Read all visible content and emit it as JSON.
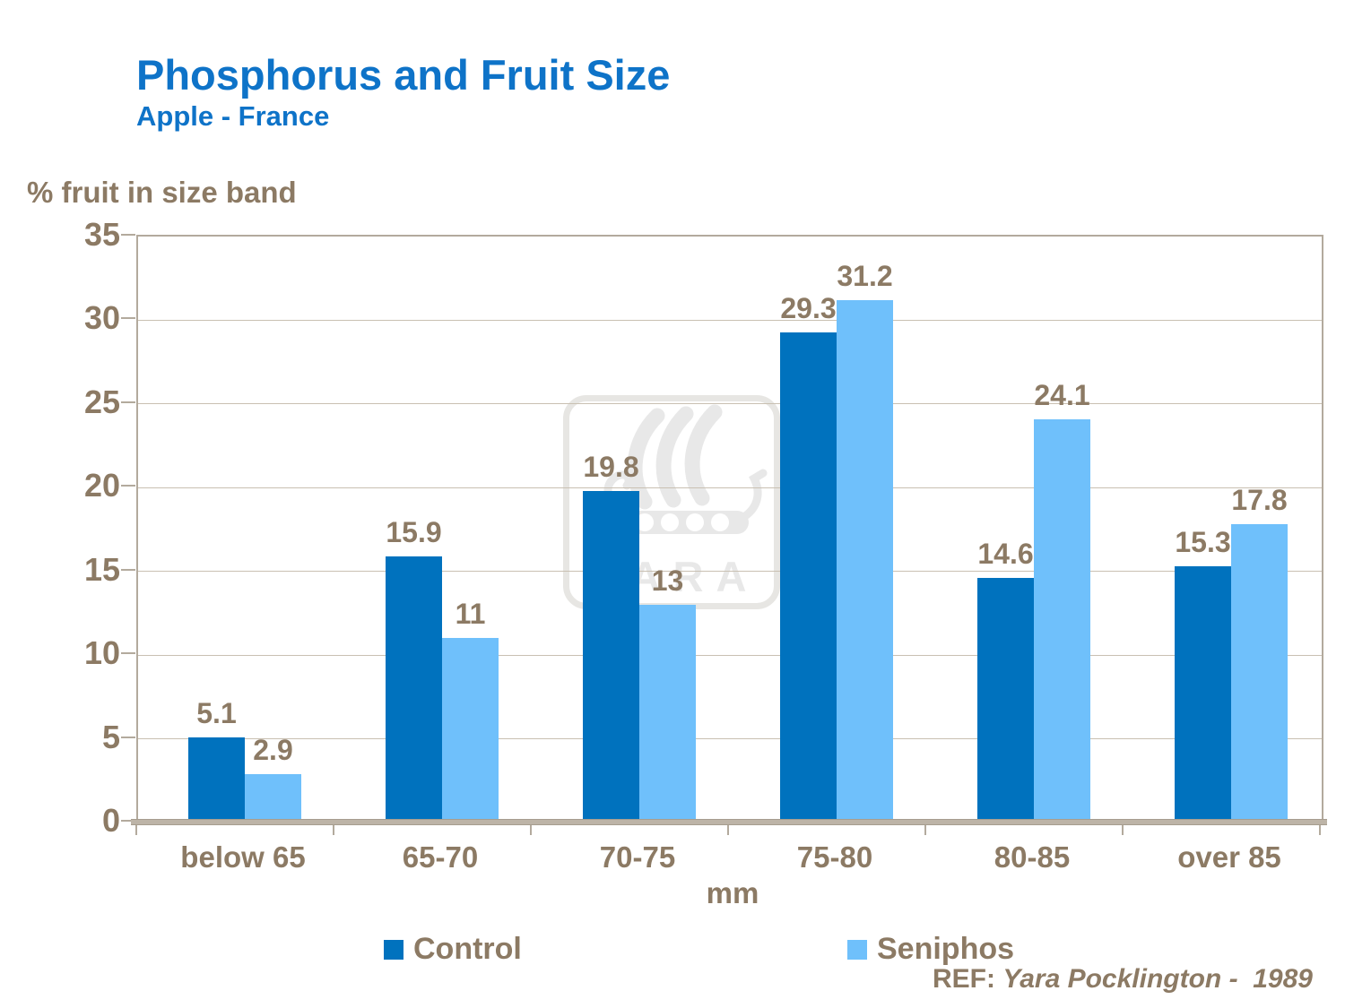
{
  "title": "Phosphorus and Fruit Size",
  "subtitle": "Apple - France",
  "y_axis_title": "% fruit in size band",
  "x_axis_title": "mm",
  "reference": {
    "prefix": "REF: ",
    "citation": "Yara Pocklington -  1989"
  },
  "watermark_text": "YARA",
  "legend": [
    {
      "label": "Control",
      "color": "#0072be"
    },
    {
      "label": "Seniphos",
      "color": "#6fc0fb"
    }
  ],
  "colors": {
    "title_blue": "#0e73c8",
    "control_bar": "#0072be",
    "seniphos_bar": "#6fc0fb",
    "axis_text": "#8c7a64",
    "gridline": "#c9c0b2",
    "frame": "#b3aa9d",
    "watermark": "#e8e8e8"
  },
  "chart_data": {
    "type": "bar",
    "title": "Phosphorus and Fruit Size",
    "subtitle": "Apple - France",
    "categories": [
      "below 65",
      "65-70",
      "70-75",
      "75-80",
      "80-85",
      "over 85"
    ],
    "series": [
      {
        "name": "Control",
        "color": "#0072be",
        "values": [
          5.1,
          15.9,
          19.8,
          29.3,
          14.6,
          15.3
        ],
        "labels": [
          "5.1",
          "15.9",
          "19.8",
          "29.3",
          "14.6",
          "15.3"
        ]
      },
      {
        "name": "Seniphos",
        "color": "#6fc0fb",
        "values": [
          2.9,
          11,
          13,
          31.2,
          24.1,
          17.8
        ],
        "labels": [
          "2.9",
          "11",
          "13",
          "31.2",
          "24.1",
          "17.8"
        ]
      }
    ],
    "xlabel": "mm",
    "ylabel": "% fruit in size band",
    "ylim": [
      0,
      35
    ],
    "ytick_step": 5,
    "yticks": [
      0,
      5,
      10,
      15,
      20,
      25,
      30,
      35
    ],
    "grid": true,
    "legend_position": "bottom",
    "data_labels": "outside-end"
  }
}
